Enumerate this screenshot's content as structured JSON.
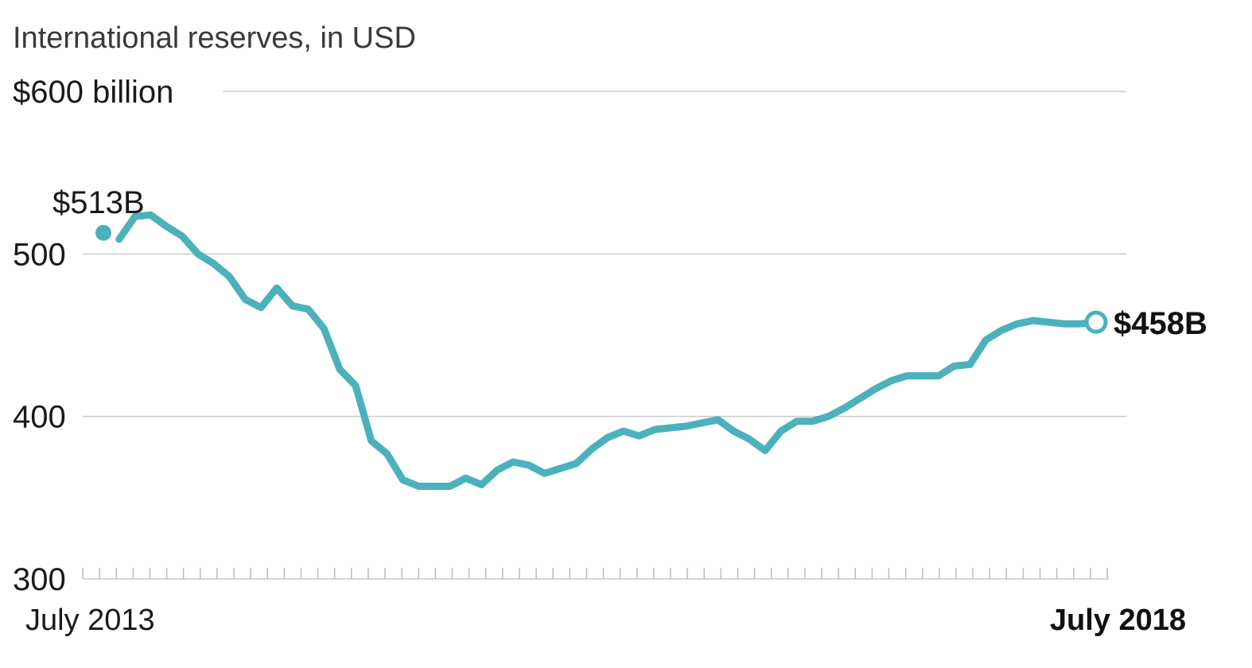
{
  "chart_data": {
    "type": "line",
    "title": "International reserves, in USD",
    "y_tick_labels": [
      "$600 billion",
      "500",
      "400",
      "300"
    ],
    "y_ticks": [
      600,
      500,
      400,
      300
    ],
    "ylim": [
      300,
      600
    ],
    "x_start_label": "July 2013",
    "x_end_label": "July 2018",
    "grid": true,
    "line_color": "#4bb1bb",
    "start_annotation": "$513B",
    "end_annotation": "$458B",
    "series": [
      {
        "values": [
          513,
          509,
          523,
          524,
          517,
          511,
          500,
          494,
          486,
          472,
          467,
          479,
          468,
          466,
          454,
          429,
          419,
          385,
          377,
          361,
          357,
          357,
          357,
          362,
          358,
          367,
          372,
          370,
          365,
          368,
          371,
          380,
          387,
          391,
          388,
          392,
          393,
          394,
          396,
          398,
          391,
          386,
          379,
          391,
          397,
          397,
          400,
          405,
          411,
          417,
          422,
          425,
          425,
          425,
          431,
          432,
          447,
          453,
          457,
          459,
          458,
          457,
          457,
          458
        ]
      }
    ]
  }
}
